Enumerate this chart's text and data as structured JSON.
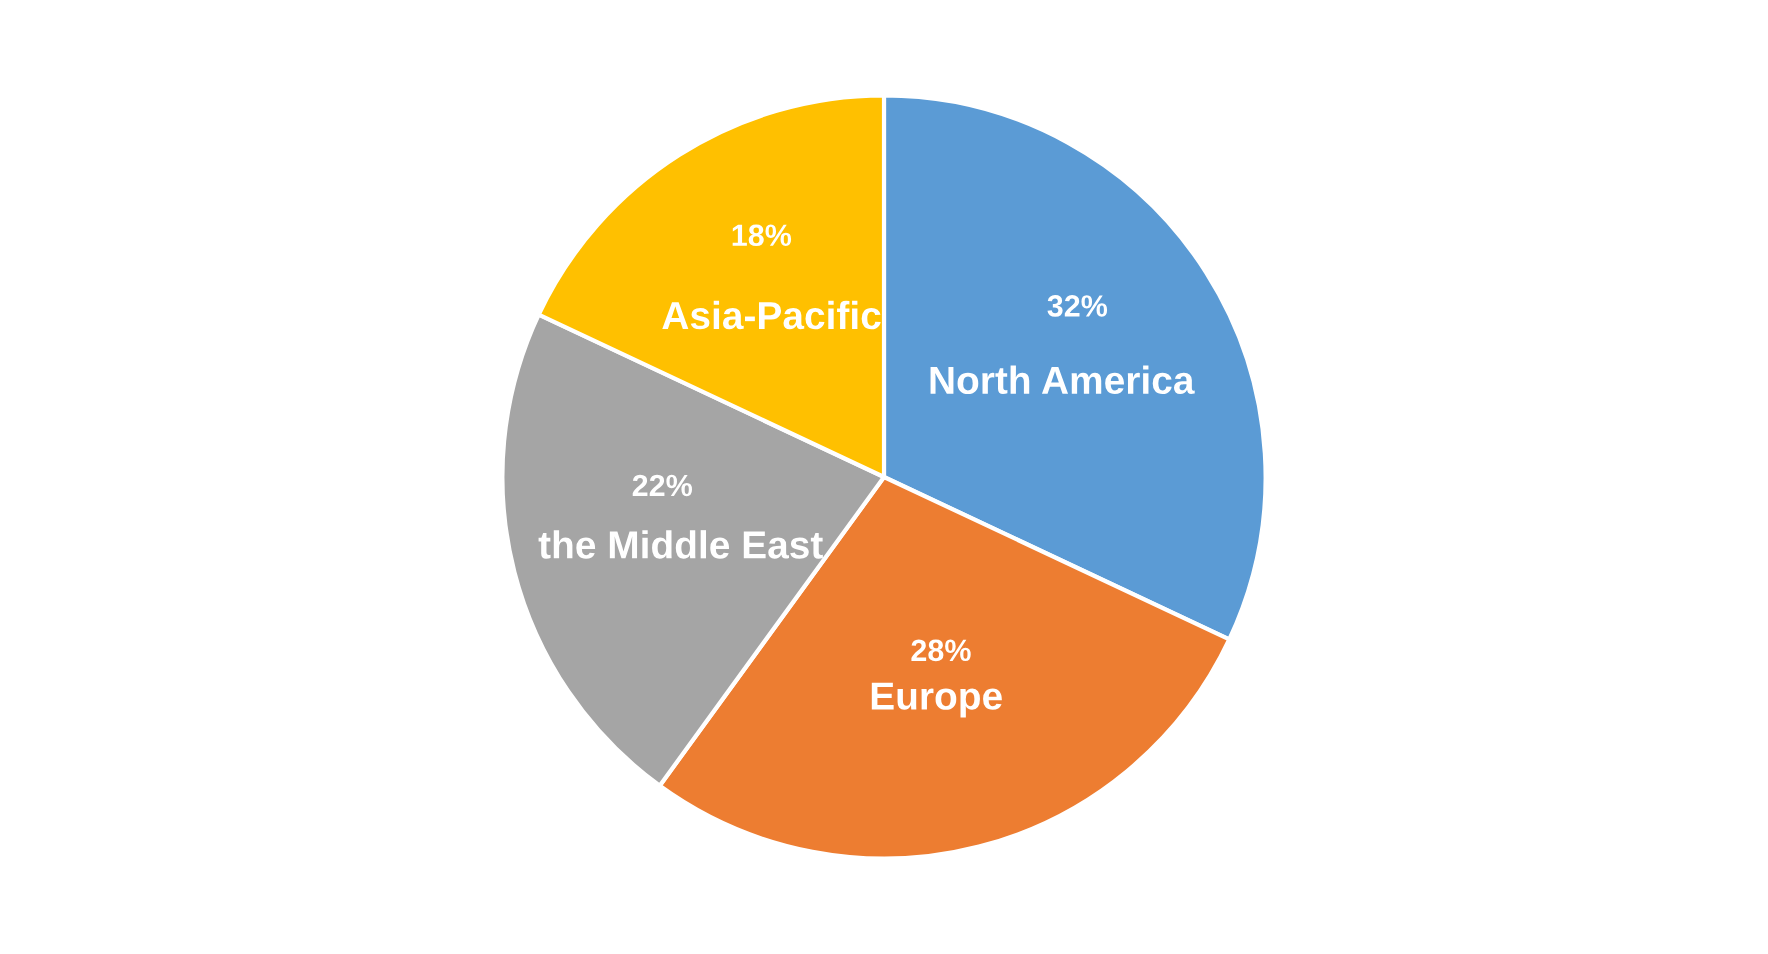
{
  "chart_data": {
    "type": "pie",
    "categories": [
      "North America",
      "Europe",
      "the Middle East",
      "Asia-Pacific"
    ],
    "values": [
      32,
      28,
      22,
      18
    ],
    "value_labels": [
      "32%",
      "28%",
      "22%",
      "18%"
    ],
    "colors": [
      "#5b9bd5",
      "#ed7d31",
      "#a5a5a5",
      "#ffc000"
    ],
    "legend": false
  }
}
